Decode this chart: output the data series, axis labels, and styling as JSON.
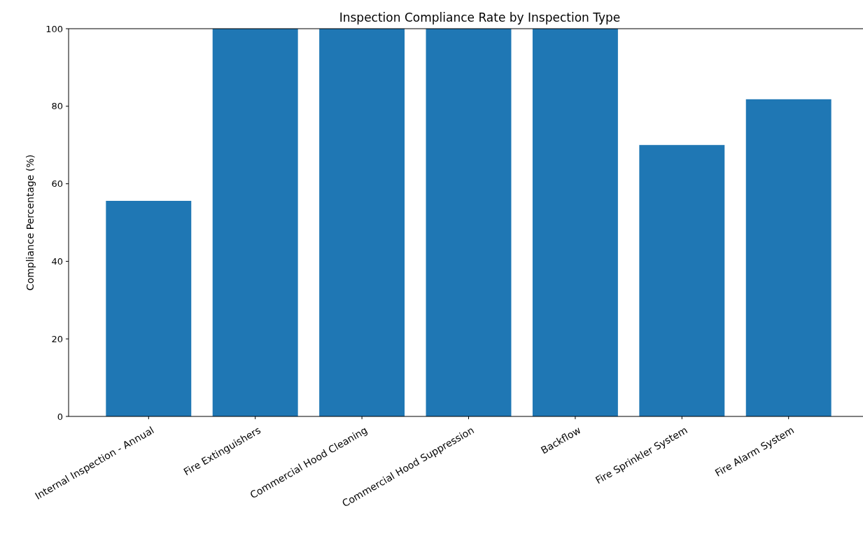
{
  "chart_data": {
    "type": "bar",
    "title": "Inspection Compliance Rate by Inspection Type",
    "ylabel": "Compliance Percentage (%)",
    "categories": [
      "Internal Inspection - Annual",
      "Fire Extinguishers",
      "Commercial Hood Cleaning",
      "Commercial Hood Suppression",
      "Backflow",
      "Fire Sprinkler System",
      "Fire Alarm System"
    ],
    "values": [
      55.6,
      100,
      100,
      100,
      100,
      70,
      81.8
    ],
    "color": "#1f77b4",
    "ylim": [
      0,
      100
    ],
    "yticks": [
      0,
      20,
      40,
      60,
      80,
      100
    ],
    "grid": false
  }
}
